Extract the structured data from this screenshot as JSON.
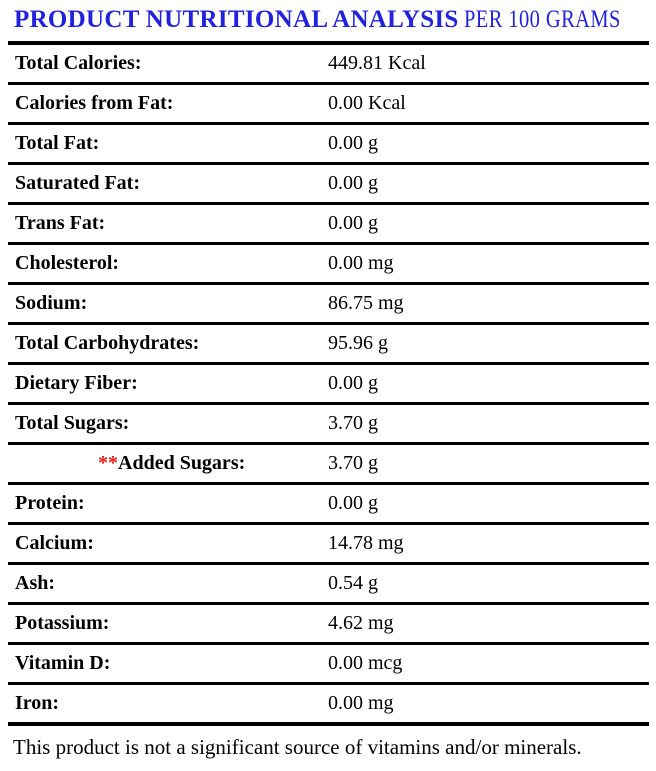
{
  "title": {
    "main": "PRODUCT NUTRITIONAL ANALYSIS",
    "suffix": "PER 100 GRAMS"
  },
  "colors": {
    "title_blue": "#2222DD",
    "asterisk_red": "#E31B1B",
    "rule_black": "#000000"
  },
  "table": {
    "rows": [
      {
        "label": "Total Calories:",
        "value": "449.81 Kcal",
        "prefix": "",
        "indent": false
      },
      {
        "label": "Calories from Fat:",
        "value": "0.00 Kcal",
        "prefix": "",
        "indent": false
      },
      {
        "label": "Total Fat:",
        "value": "0.00 g",
        "prefix": "",
        "indent": false
      },
      {
        "label": "Saturated Fat:",
        "value": "0.00 g",
        "prefix": "",
        "indent": false
      },
      {
        "label": "Trans Fat:",
        "value": "0.00 g",
        "prefix": "",
        "indent": false
      },
      {
        "label": "Cholesterol:",
        "value": "0.00 mg",
        "prefix": "",
        "indent": false
      },
      {
        "label": "Sodium:",
        "value": "86.75 mg",
        "prefix": "",
        "indent": false
      },
      {
        "label": "Total Carbohydrates:",
        "value": "95.96 g",
        "prefix": "",
        "indent": false
      },
      {
        "label": "Dietary Fiber:",
        "value": "0.00 g",
        "prefix": "",
        "indent": false
      },
      {
        "label": "Total Sugars:",
        "value": "3.70 g",
        "prefix": "",
        "indent": false
      },
      {
        "label": "Added Sugars:",
        "value": "3.70 g",
        "prefix": "**",
        "indent": true
      },
      {
        "label": "Protein:",
        "value": "0.00 g",
        "prefix": "",
        "indent": false
      },
      {
        "label": "Calcium:",
        "value": "14.78 mg",
        "prefix": "",
        "indent": false
      },
      {
        "label": "Ash:",
        "value": "0.54 g",
        "prefix": "",
        "indent": false
      },
      {
        "label": "Potassium:",
        "value": "4.62 mg",
        "prefix": "",
        "indent": false
      },
      {
        "label": "Vitamin D:",
        "value": "0.00 mcg",
        "prefix": "",
        "indent": false
      },
      {
        "label": "Iron:",
        "value": "0.00 mg",
        "prefix": "",
        "indent": false
      }
    ]
  },
  "footer": {
    "note": "This product is not a significant source of vitamins and/or minerals."
  }
}
